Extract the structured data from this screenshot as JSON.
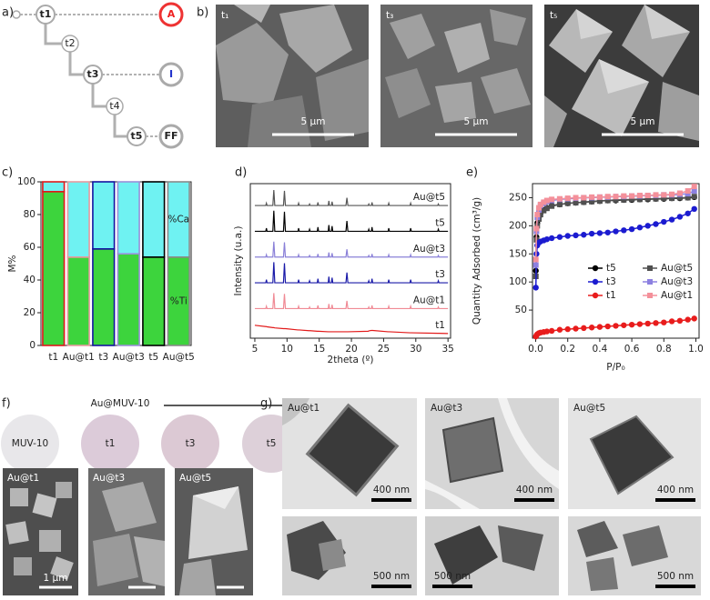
{
  "panel_labels": [
    "a)",
    "b)",
    "c)",
    "d)",
    "e)",
    "f)",
    "g)"
  ],
  "synthesis_tree": {
    "nodes": [
      "t1",
      "t2",
      "t3",
      "t4",
      "t5"
    ],
    "products": [
      "A",
      "I",
      "FF"
    ]
  },
  "sem_b": [
    {
      "label": "t₁",
      "scale": "5 μm"
    },
    {
      "label": "t₃",
      "scale": "5 μm"
    },
    {
      "label": "t₅",
      "scale": "5 μm"
    }
  ],
  "chart_data": [
    {
      "type": "stacked_bar",
      "ylabel": "M%",
      "categories": [
        "t1",
        "Au@t1",
        "t3",
        "Au@t3",
        "t5",
        "Au@t5"
      ],
      "series": [
        {
          "name": "%Ti",
          "color": "#3dd43d",
          "values": [
            94,
            54,
            59,
            56,
            54,
            54
          ]
        },
        {
          "name": "%Ca",
          "color": "#6ff2f2",
          "values": [
            6,
            46,
            41,
            44,
            46,
            46
          ]
        }
      ],
      "edge_colors": [
        "#e0181c",
        "#e89aa0",
        "#1414a0",
        "#9a90d8",
        "#000000",
        "#8a8a8a"
      ],
      "ylim": [
        0,
        100
      ],
      "yticks": [
        0,
        20,
        40,
        60,
        80,
        100
      ]
    },
    {
      "type": "line",
      "xlabel": "2theta (º)",
      "ylabel": "Intensity (u.a.)",
      "x": [
        5,
        6.7,
        6.8,
        6.9,
        7.8,
        7.95,
        8.1,
        9.45,
        9.6,
        9.75,
        11.7,
        11.8,
        11.9,
        13.4,
        13.5,
        13.6,
        14.7,
        14.8,
        14.9,
        16.4,
        16.5,
        16.6,
        16.9,
        17.0,
        17.1,
        19.15,
        19.3,
        19.45,
        22.6,
        22.7,
        22.8,
        23.1,
        23.2,
        23.3,
        25.7,
        25.8,
        25.9,
        29.1,
        29.2,
        29.3,
        33.4,
        33.5,
        33.6,
        35
      ],
      "series": [
        {
          "name": "Au@t5",
          "color": "#555555",
          "values": [
            5,
            5,
            5.09,
            5,
            5,
            5.6,
            5,
            5,
            5.57,
            5,
            5,
            5.09,
            5,
            5,
            5.06,
            5,
            5,
            5.12,
            5,
            5,
            5.18,
            5,
            5,
            5.15,
            5,
            5,
            5.3,
            5,
            5,
            5.06,
            5,
            5,
            5.12,
            5,
            5,
            5.09,
            5,
            5,
            5.09,
            5,
            5,
            5.06,
            5,
            5
          ]
        },
        {
          "name": "t5",
          "color": "#000000",
          "values": [
            4,
            4,
            4.12,
            4,
            4,
            4.8,
            4,
            4,
            4.76,
            4,
            4,
            4.12,
            4,
            4,
            4.08,
            4,
            4,
            4.16,
            4,
            4,
            4.24,
            4,
            4,
            4.2,
            4,
            4,
            4.4,
            4,
            4,
            4.08,
            4,
            4,
            4.16,
            4,
            4,
            4.12,
            4,
            4,
            4.12,
            4,
            4,
            4.08,
            4,
            4
          ]
        },
        {
          "name": "Au@t3",
          "color": "#8a80d8",
          "values": [
            3,
            3,
            3.09,
            3,
            3,
            3.6,
            3,
            3,
            3.57,
            3,
            3,
            3.09,
            3,
            3,
            3.06,
            3,
            3,
            3.12,
            3,
            3,
            3.18,
            3,
            3,
            3.15,
            3,
            3,
            3.3,
            3,
            3,
            3.06,
            3,
            3,
            3.12,
            3,
            3,
            3.09,
            3,
            3,
            3.09,
            3,
            3,
            3.06,
            3,
            3
          ]
        },
        {
          "name": "t3",
          "color": "#1a1aa8",
          "values": [
            2,
            2,
            2.12,
            2,
            2,
            2.8,
            2,
            2,
            2.76,
            2,
            2,
            2.12,
            2,
            2,
            2.08,
            2,
            2,
            2.16,
            2,
            2,
            2.24,
            2,
            2,
            2.2,
            2,
            2,
            2.4,
            2,
            2,
            2.08,
            2,
            2,
            2.16,
            2,
            2,
            2.12,
            2,
            2,
            2.12,
            2,
            2,
            2.08,
            2,
            2
          ]
        },
        {
          "name": "Au@t1",
          "color": "#f08a95",
          "values": [
            1,
            1,
            1.09,
            1,
            1,
            1.6,
            1,
            1,
            1.57,
            1,
            1,
            1.09,
            1,
            1,
            1.06,
            1,
            1,
            1.12,
            1,
            1,
            1.18,
            1,
            1,
            1.15,
            1,
            1,
            1.3,
            1,
            1,
            1.06,
            1,
            1,
            1.12,
            1,
            1,
            1.09,
            1,
            1,
            1.09,
            1,
            1,
            1.06,
            1,
            1
          ]
        },
        {
          "name": "t1",
          "color": "#e21a1a",
          "values": [
            0.35,
            0.3,
            0.3,
            0.29,
            0.26,
            0.26,
            0.25,
            0.22,
            0.22,
            0.22,
            0.17,
            0.17,
            0.17,
            0.14,
            0.14,
            0.14,
            0.12,
            0.12,
            0.12,
            0.1,
            0.1,
            0.1,
            0.1,
            0.1,
            0.1,
            0.1,
            0.1,
            0.1,
            0.12,
            0.13,
            0.14,
            0.15,
            0.15,
            0.15,
            0.1,
            0.1,
            0.1,
            0.06,
            0.06,
            0.06,
            0.04,
            0.04,
            0.04,
            0.03
          ]
        }
      ],
      "xlim": [
        4.3,
        35.4
      ],
      "xticks": [
        5,
        10,
        15,
        20,
        25,
        30,
        35
      ],
      "ylim": [
        -0.15,
        5.85
      ]
    },
    {
      "type": "line",
      "xlabel": "P/P₀",
      "ylabel": "Quantity Adsorbed (cm³/g)",
      "legend": "center right",
      "x": [
        0.001,
        0.005,
        0.01,
        0.02,
        0.03,
        0.05,
        0.07,
        0.1,
        0.15,
        0.2,
        0.25,
        0.3,
        0.35,
        0.4,
        0.45,
        0.5,
        0.55,
        0.6,
        0.65,
        0.7,
        0.75,
        0.8,
        0.85,
        0.9,
        0.95,
        0.99
      ],
      "series": [
        {
          "name": "t5",
          "color": "#000000",
          "marker": "circle",
          "values": [
            120,
            180,
            205,
            215,
            222,
            228,
            232,
            236,
            238,
            240,
            241,
            242,
            243,
            244,
            245,
            245,
            246,
            246,
            247,
            247,
            248,
            248,
            249,
            249,
            250,
            251
          ]
        },
        {
          "name": "Au@t5",
          "color": "#505050",
          "marker": "square",
          "values": [
            110,
            175,
            200,
            212,
            220,
            227,
            231,
            235,
            238,
            240,
            241,
            242,
            243,
            244,
            245,
            246,
            246,
            247,
            247,
            248,
            248,
            249,
            249,
            250,
            250,
            252
          ]
        },
        {
          "name": "t3",
          "color": "#1b1bd0",
          "marker": "circle",
          "values": [
            90,
            150,
            165,
            170,
            172,
            174,
            176,
            178,
            180,
            182,
            183,
            184,
            186,
            187,
            188,
            190,
            192,
            194,
            197,
            200,
            203,
            207,
            211,
            216,
            222,
            230
          ]
        },
        {
          "name": "Au@t3",
          "color": "#8c80e0",
          "marker": "square",
          "values": [
            130,
            190,
            215,
            228,
            236,
            240,
            243,
            245,
            247,
            248,
            249,
            250,
            250,
            251,
            251,
            252,
            252,
            253,
            253,
            254,
            254,
            255,
            255,
            256,
            257,
            262
          ]
        },
        {
          "name": "t1",
          "color": "#e81c1c",
          "marker": "circle",
          "values": [
            3,
            5,
            7,
            9,
            10,
            11,
            12,
            13,
            15,
            16,
            17,
            18,
            19,
            20,
            21,
            22,
            23,
            24,
            25,
            26,
            27,
            28,
            30,
            31,
            33,
            35
          ]
        },
        {
          "name": "Au@t1",
          "color": "#f4909a",
          "marker": "square",
          "values": [
            140,
            195,
            220,
            232,
            238,
            242,
            245,
            247,
            248,
            249,
            250,
            250,
            251,
            251,
            252,
            252,
            253,
            253,
            254,
            254,
            255,
            255,
            256,
            258,
            262,
            270
          ]
        }
      ],
      "xlim": [
        -0.02,
        1.02
      ],
      "xticks": [
        {
          "value": 0,
          "label": "0.0"
        },
        0.2,
        0.4,
        0.6,
        0.8,
        {
          "value": 1,
          "label": "1.0"
        }
      ],
      "ylim": [
        0,
        275
      ],
      "yticks": [
        50,
        100,
        150,
        200,
        250
      ]
    }
  ],
  "panel_f": {
    "arrow_label": "Au@MUV-10",
    "samples": [
      "MUV-10",
      "t1",
      "t3",
      "t5"
    ],
    "images": [
      {
        "label": "Au@t1",
        "scale": "1 μm"
      },
      {
        "label": "Au@t3"
      },
      {
        "label": "Au@t5"
      }
    ]
  },
  "panel_g": {
    "top": [
      {
        "label": "Au@t1",
        "scale": "400 nm"
      },
      {
        "label": "Au@t3",
        "scale": "400 nm"
      },
      {
        "label": "Au@t5",
        "scale": "400 nm"
      }
    ],
    "bottom": [
      {
        "scale": "500 nm"
      },
      {
        "scale": "500 nm"
      },
      {
        "scale": "500 nm"
      }
    ]
  }
}
